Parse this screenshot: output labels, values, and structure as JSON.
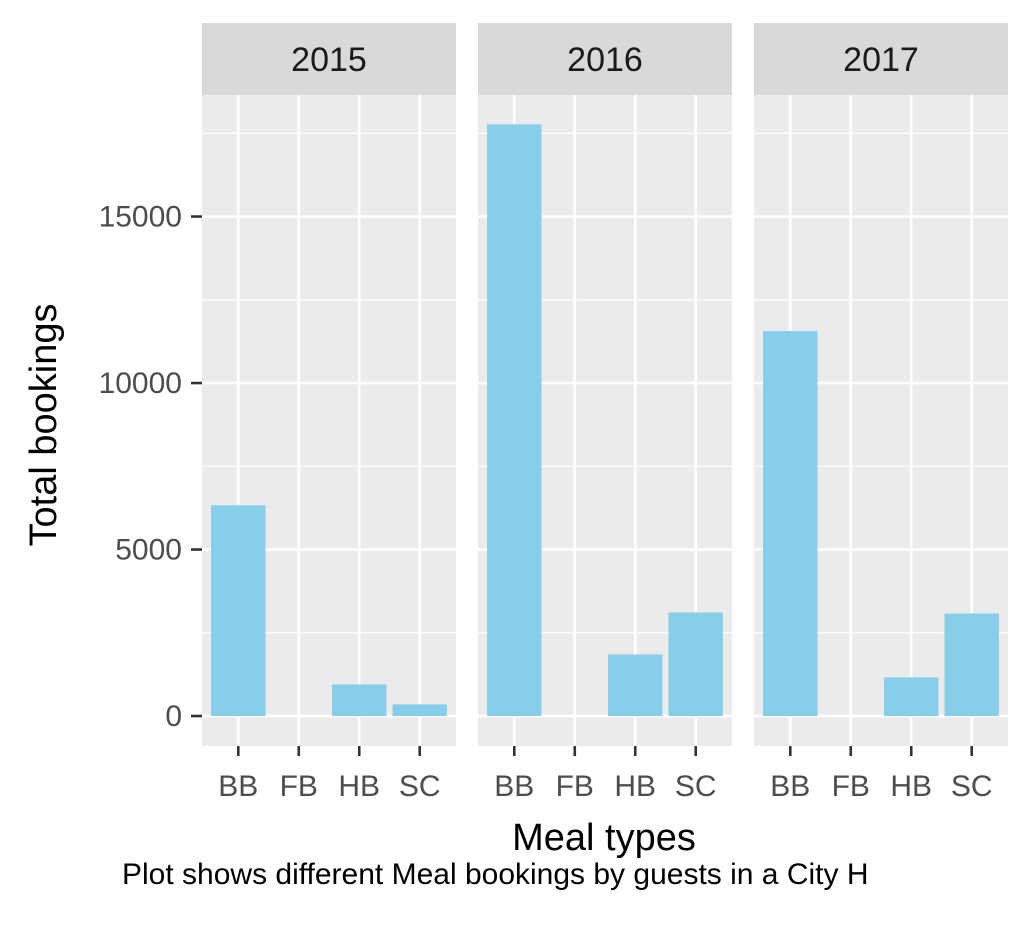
{
  "chart_data": {
    "type": "bar",
    "facets": [
      "2015",
      "2016",
      "2017"
    ],
    "categories": [
      "BB",
      "FB",
      "HB",
      "SC"
    ],
    "series": [
      {
        "facet": "2015",
        "values": [
          6330,
          0,
          950,
          350
        ]
      },
      {
        "facet": "2016",
        "values": [
          17770,
          0,
          1850,
          3110
        ]
      },
      {
        "facet": "2017",
        "values": [
          11560,
          0,
          1160,
          3080
        ]
      }
    ],
    "xlabel": "Meal types",
    "ylabel": "Total bookings",
    "caption": "Plot shows different Meal bookings by guests in a City H",
    "yticks": [
      0,
      5000,
      10000,
      15000
    ],
    "ylim": [
      -900,
      18650
    ],
    "bar_color": "#87CEEB",
    "panel_background": "#EBEBEB",
    "strip_background": "#D9D9D9",
    "grid": true,
    "legend": "none"
  }
}
